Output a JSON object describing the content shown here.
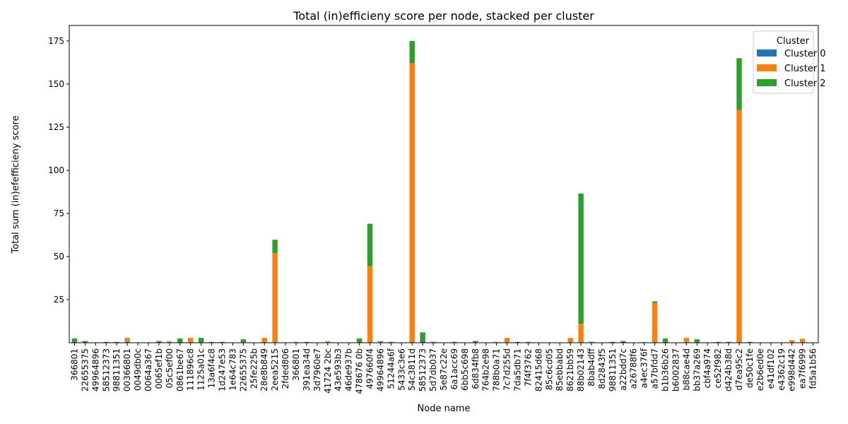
{
  "chart_data": {
    "type": "bar",
    "stacked": true,
    "title": "Total (in)efficieny score per node, stacked per cluster",
    "xlabel": "Node name",
    "ylabel": "Total sum (in)efefficieny score",
    "ylim": [
      0,
      184
    ],
    "yticks": [
      25,
      50,
      75,
      100,
      125,
      150,
      175
    ],
    "grid": false,
    "legend_title": "Cluster",
    "legend_position": "top-right",
    "categories": [
      "366801",
      "22655375",
      "49964896",
      "58512373",
      "98811351",
      "00366801",
      "0049db0c",
      "0064a367",
      "0065ef1b",
      "05c5ef00",
      "0861be67",
      "111896c8",
      "1125a01c",
      "13a6f4c8",
      "1d247e53",
      "1e64c783",
      "22655375",
      "25fe225b",
      "28e8b849",
      "2eea5215",
      "2fded806",
      "366801",
      "391ea34d",
      "3d7960e7",
      "41724 2bc",
      "43e593b3",
      "46de937b",
      "478676 0b",
      "497660f4",
      "49964896",
      "51244a6f",
      "5433c3e6",
      "54c3811d",
      "58512373",
      "5d7db037",
      "5e87c22e",
      "6a1acc69",
      "6bb5c698",
      "6d834fb8",
      "764b2e98",
      "788b0a71",
      "7c7d255d",
      "7da5db71",
      "7f4f3762",
      "82415d68",
      "85c6cd05",
      "85ebbabd",
      "8621bb59",
      "88b02143",
      "8bab4dff",
      "8d2843f5",
      "98811351",
      "a22bdd7c",
      "a26788f6",
      "a4ec376f",
      "a57bfdd7",
      "b1b36b26",
      "b6002837",
      "b88cae4d",
      "bb37a269",
      "cbf4a974",
      "ce52f982",
      "d424b38d",
      "d7ea95c2",
      "de50c1fe",
      "e2b6ed0e",
      "e41df102",
      "e4362c19",
      "e998d442",
      "ea7f6999",
      "fd5a1b56"
    ],
    "series": [
      {
        "name": "Cluster 0",
        "color": "#1f77b4",
        "values": [
          0,
          0,
          0,
          0,
          0,
          0.5,
          0,
          0,
          0,
          0,
          0,
          0,
          0,
          0,
          0,
          0,
          0,
          0,
          0,
          0,
          0,
          0,
          0,
          0,
          0,
          0,
          0,
          0,
          0,
          0,
          0,
          0,
          0,
          1,
          0,
          0,
          0,
          0,
          0,
          0,
          0,
          0,
          0,
          0,
          0,
          0,
          0,
          0,
          0,
          0,
          0,
          0.5,
          0,
          0,
          0.3,
          0,
          0,
          0,
          0,
          0,
          0,
          0,
          0,
          0,
          0,
          0,
          0,
          0,
          0,
          0,
          0
        ]
      },
      {
        "name": "Cluster 1",
        "color": "#ff7f0e",
        "values": [
          0,
          0,
          0,
          0,
          0,
          2,
          0,
          0,
          0,
          0.8,
          0,
          2.8,
          0,
          0,
          0,
          0,
          0,
          0,
          2.8,
          52,
          0,
          0.5,
          0,
          0,
          0.8,
          0,
          0,
          0,
          44.5,
          0.3,
          0,
          0,
          162,
          0,
          0,
          0,
          0,
          0,
          0,
          0,
          0.5,
          2.8,
          0,
          0,
          0,
          0,
          0,
          2.8,
          11,
          0,
          0,
          0,
          0,
          0,
          0,
          23,
          0,
          0,
          2.8,
          0,
          0,
          0,
          0,
          135,
          0,
          0,
          0,
          0,
          1.5,
          2.3,
          0
        ]
      },
      {
        "name": "Cluster 2",
        "color": "#2ca02c",
        "values": [
          2.5,
          1,
          0,
          0.5,
          0.5,
          0.3,
          0,
          0,
          1,
          0,
          2.5,
          0,
          2.8,
          0.5,
          0.5,
          0,
          2,
          0,
          0,
          7.7,
          0,
          0,
          0.5,
          0,
          0,
          0,
          0,
          2.5,
          24.5,
          0.5,
          0.5,
          0,
          13,
          5,
          0.5,
          0,
          0.5,
          0,
          1,
          0,
          0,
          0,
          0.5,
          0.5,
          0,
          0,
          0,
          0,
          75.5,
          0.5,
          0,
          0,
          1,
          0,
          0,
          1,
          2.5,
          0,
          0,
          2,
          0,
          0.5,
          0.5,
          30,
          0.5,
          0,
          0,
          0,
          0,
          0,
          0
        ]
      }
    ]
  }
}
